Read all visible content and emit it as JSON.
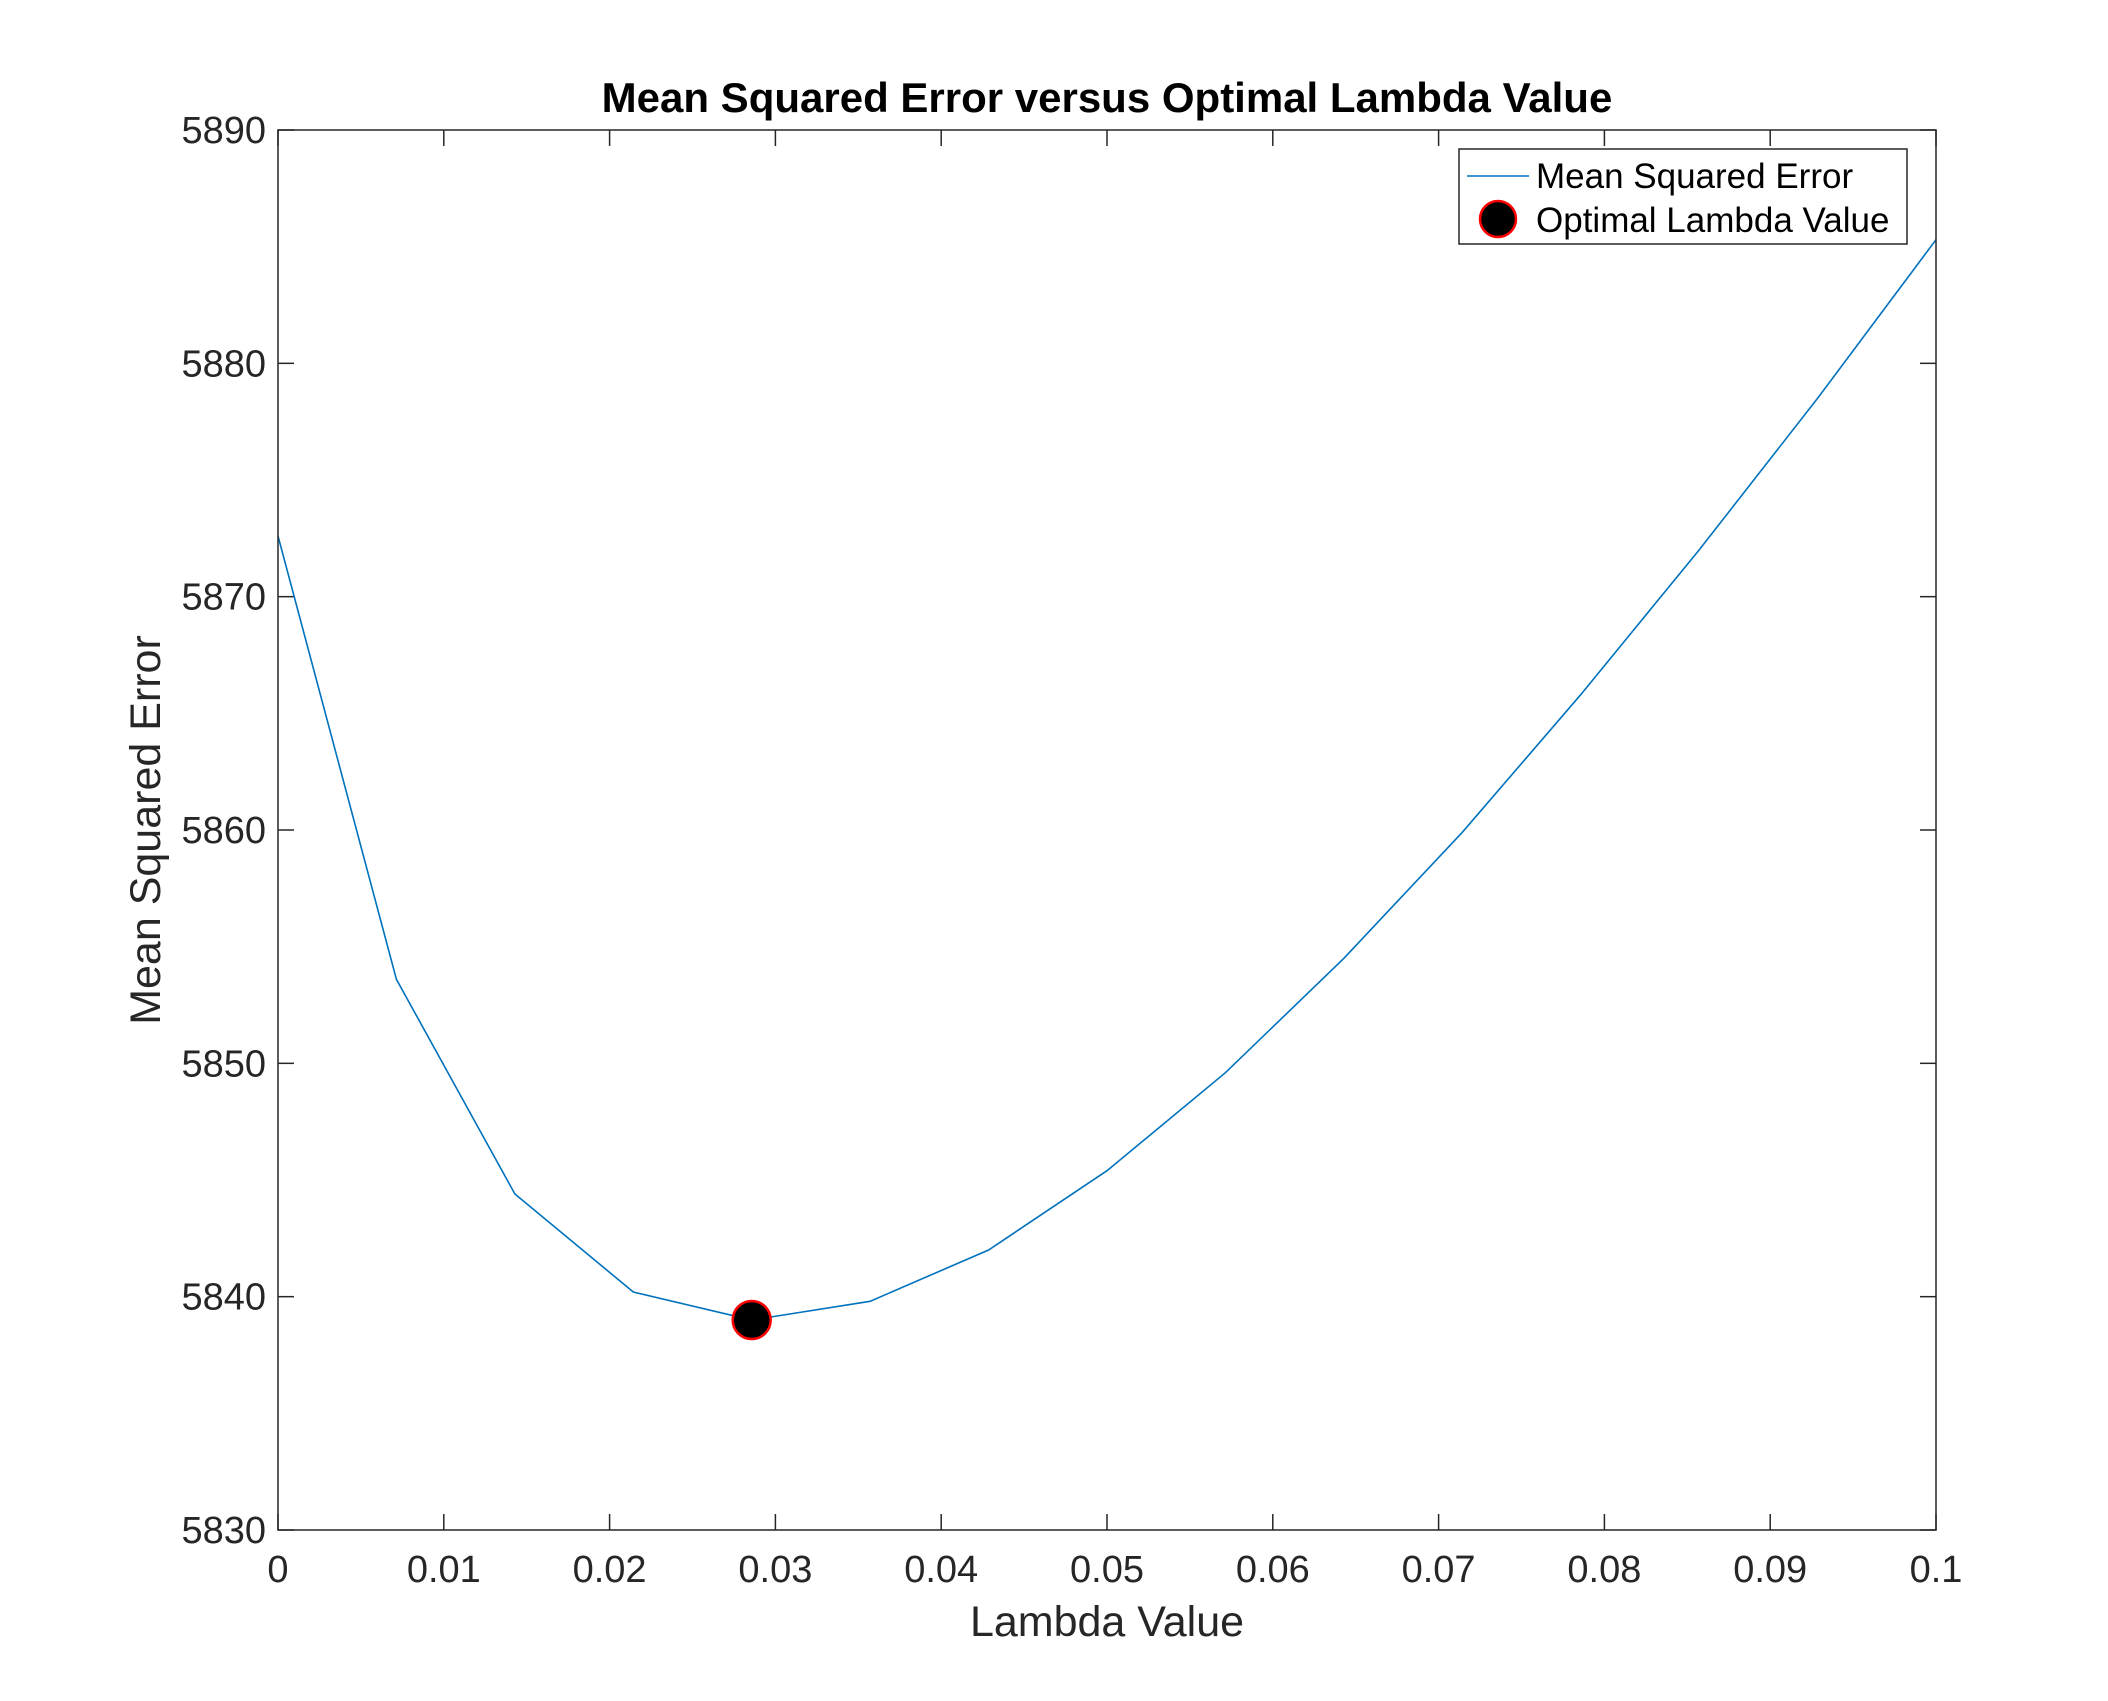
{
  "chart_data": {
    "type": "line",
    "title": "Mean Squared Error versus Optimal Lambda Value",
    "xlabel": "Lambda Value",
    "ylabel": "Mean Squared Error",
    "xlim": [
      0,
      0.1
    ],
    "ylim": [
      5830,
      5890
    ],
    "xticks": [
      0,
      0.01,
      0.02,
      0.03,
      0.04,
      0.05,
      0.06,
      0.07,
      0.08,
      0.09,
      0.1
    ],
    "xtick_labels": [
      "0",
      "0.01",
      "0.02",
      "0.03",
      "0.04",
      "0.05",
      "0.06",
      "0.07",
      "0.08",
      "0.09",
      "0.1"
    ],
    "yticks": [
      5830,
      5840,
      5850,
      5860,
      5870,
      5880,
      5890
    ],
    "ytick_labels": [
      "5830",
      "5840",
      "5850",
      "5860",
      "5870",
      "5880",
      "5890"
    ],
    "grid": false,
    "legend_position": "top-right",
    "series": [
      {
        "name": "Mean Squared Error",
        "type": "line",
        "color": "#0072BD",
        "x": [
          0,
          0.00714,
          0.01429,
          0.02143,
          0.02857,
          0.03571,
          0.04286,
          0.05,
          0.05714,
          0.06429,
          0.07143,
          0.07857,
          0.08571,
          0.09286,
          0.1
        ],
        "y": [
          5872.6,
          5853.6,
          5844.4,
          5840.2,
          5839.0,
          5839.8,
          5842.0,
          5845.4,
          5849.6,
          5854.5,
          5859.9,
          5865.8,
          5872.0,
          5878.5,
          5885.3
        ]
      },
      {
        "name": "Optimal Lambda Value",
        "type": "scatter",
        "marker_fill": "#000000",
        "marker_edge": "#ff0000",
        "x": [
          0.02857
        ],
        "y": [
          5839.0
        ]
      }
    ]
  }
}
